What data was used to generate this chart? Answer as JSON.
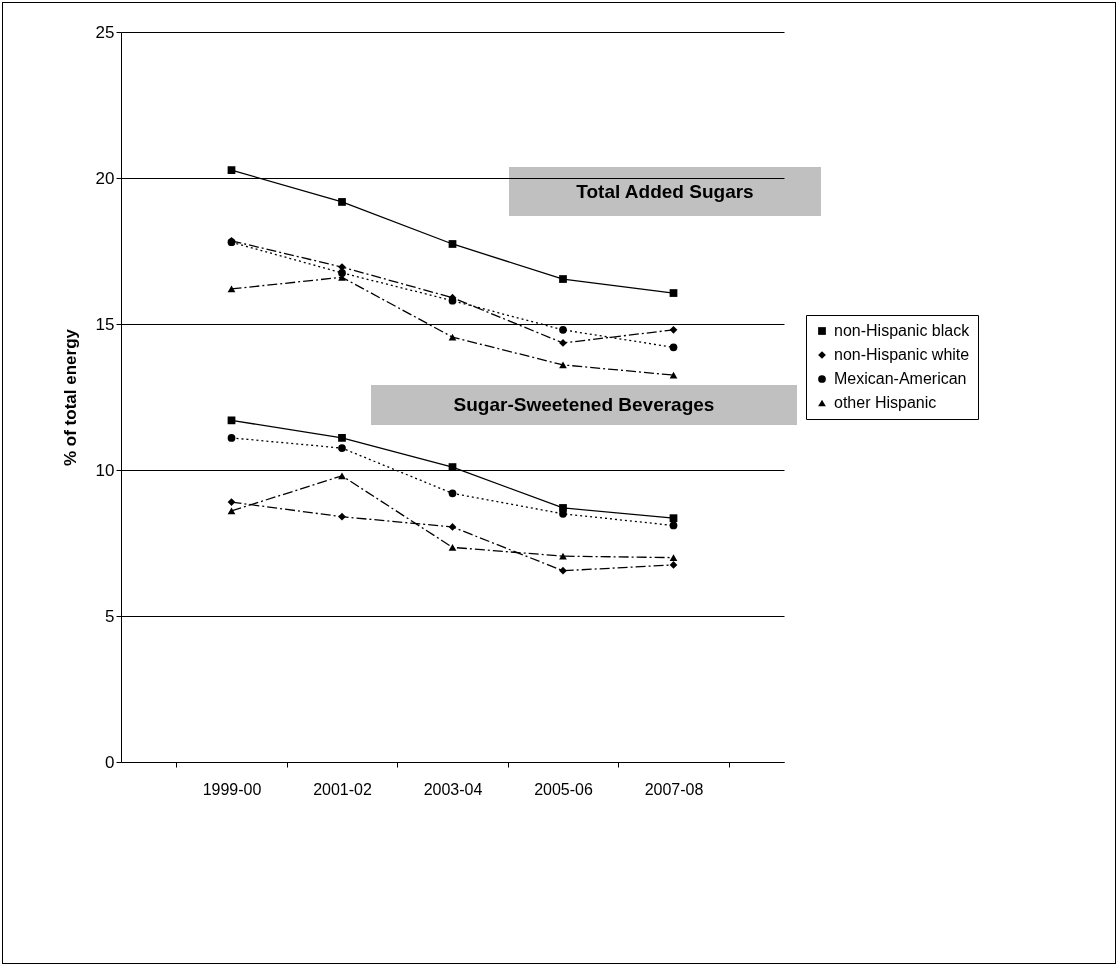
{
  "chart_data": {
    "type": "line",
    "ylabel": "% of total energy",
    "categories": [
      "1999-00",
      "2001-02",
      "2003-04",
      "2005-06",
      "2007-08"
    ],
    "ylim": [
      0,
      25
    ],
    "yticks": [
      0,
      5,
      10,
      15,
      20,
      25
    ],
    "grid": "y",
    "legend": "right",
    "annotations": [
      "Total Added Sugars",
      "Sugar-Sweetened Beverages"
    ],
    "series": [
      {
        "name": "non-Hispanic black",
        "color": "#000000",
        "marker": "square",
        "line_style": "solid",
        "values": [
          20.27,
          19.18,
          17.74,
          16.54,
          16.06
        ]
      },
      {
        "name": "non-Hispanic white",
        "color": "#000000",
        "marker": "diamond",
        "line_style": "dashed",
        "values": [
          17.85,
          16.95,
          15.9,
          14.35,
          14.8
        ]
      },
      {
        "name": "Mexican-American",
        "color": "#000000",
        "marker": "circle",
        "line_style": "dotted",
        "values": [
          17.8,
          16.75,
          15.8,
          14.8,
          14.2
        ]
      },
      {
        "name": "other Hispanic",
        "color": "#000000",
        "marker": "triangle",
        "line_style": "dashed",
        "values": [
          16.2,
          16.6,
          14.55,
          13.6,
          13.25
        ]
      },
      {
        "color": "#000000",
        "marker": "square",
        "line_style": "solid",
        "values": [
          11.7,
          11.1,
          10.1,
          8.7,
          8.35
        ]
      },
      {
        "color": "#000000",
        "marker": "diamond",
        "line_style": "dashed",
        "values": [
          8.9,
          8.4,
          8.05,
          6.55,
          6.75
        ]
      },
      {
        "color": "#000000",
        "marker": "circle",
        "line_style": "dotted",
        "values": [
          11.1,
          10.75,
          9.2,
          8.5,
          8.1
        ]
      },
      {
        "color": "#000000",
        "marker": "triangle",
        "line_style": "dashed",
        "values": [
          8.6,
          9.8,
          7.35,
          7.05,
          7.0
        ]
      }
    ]
  }
}
